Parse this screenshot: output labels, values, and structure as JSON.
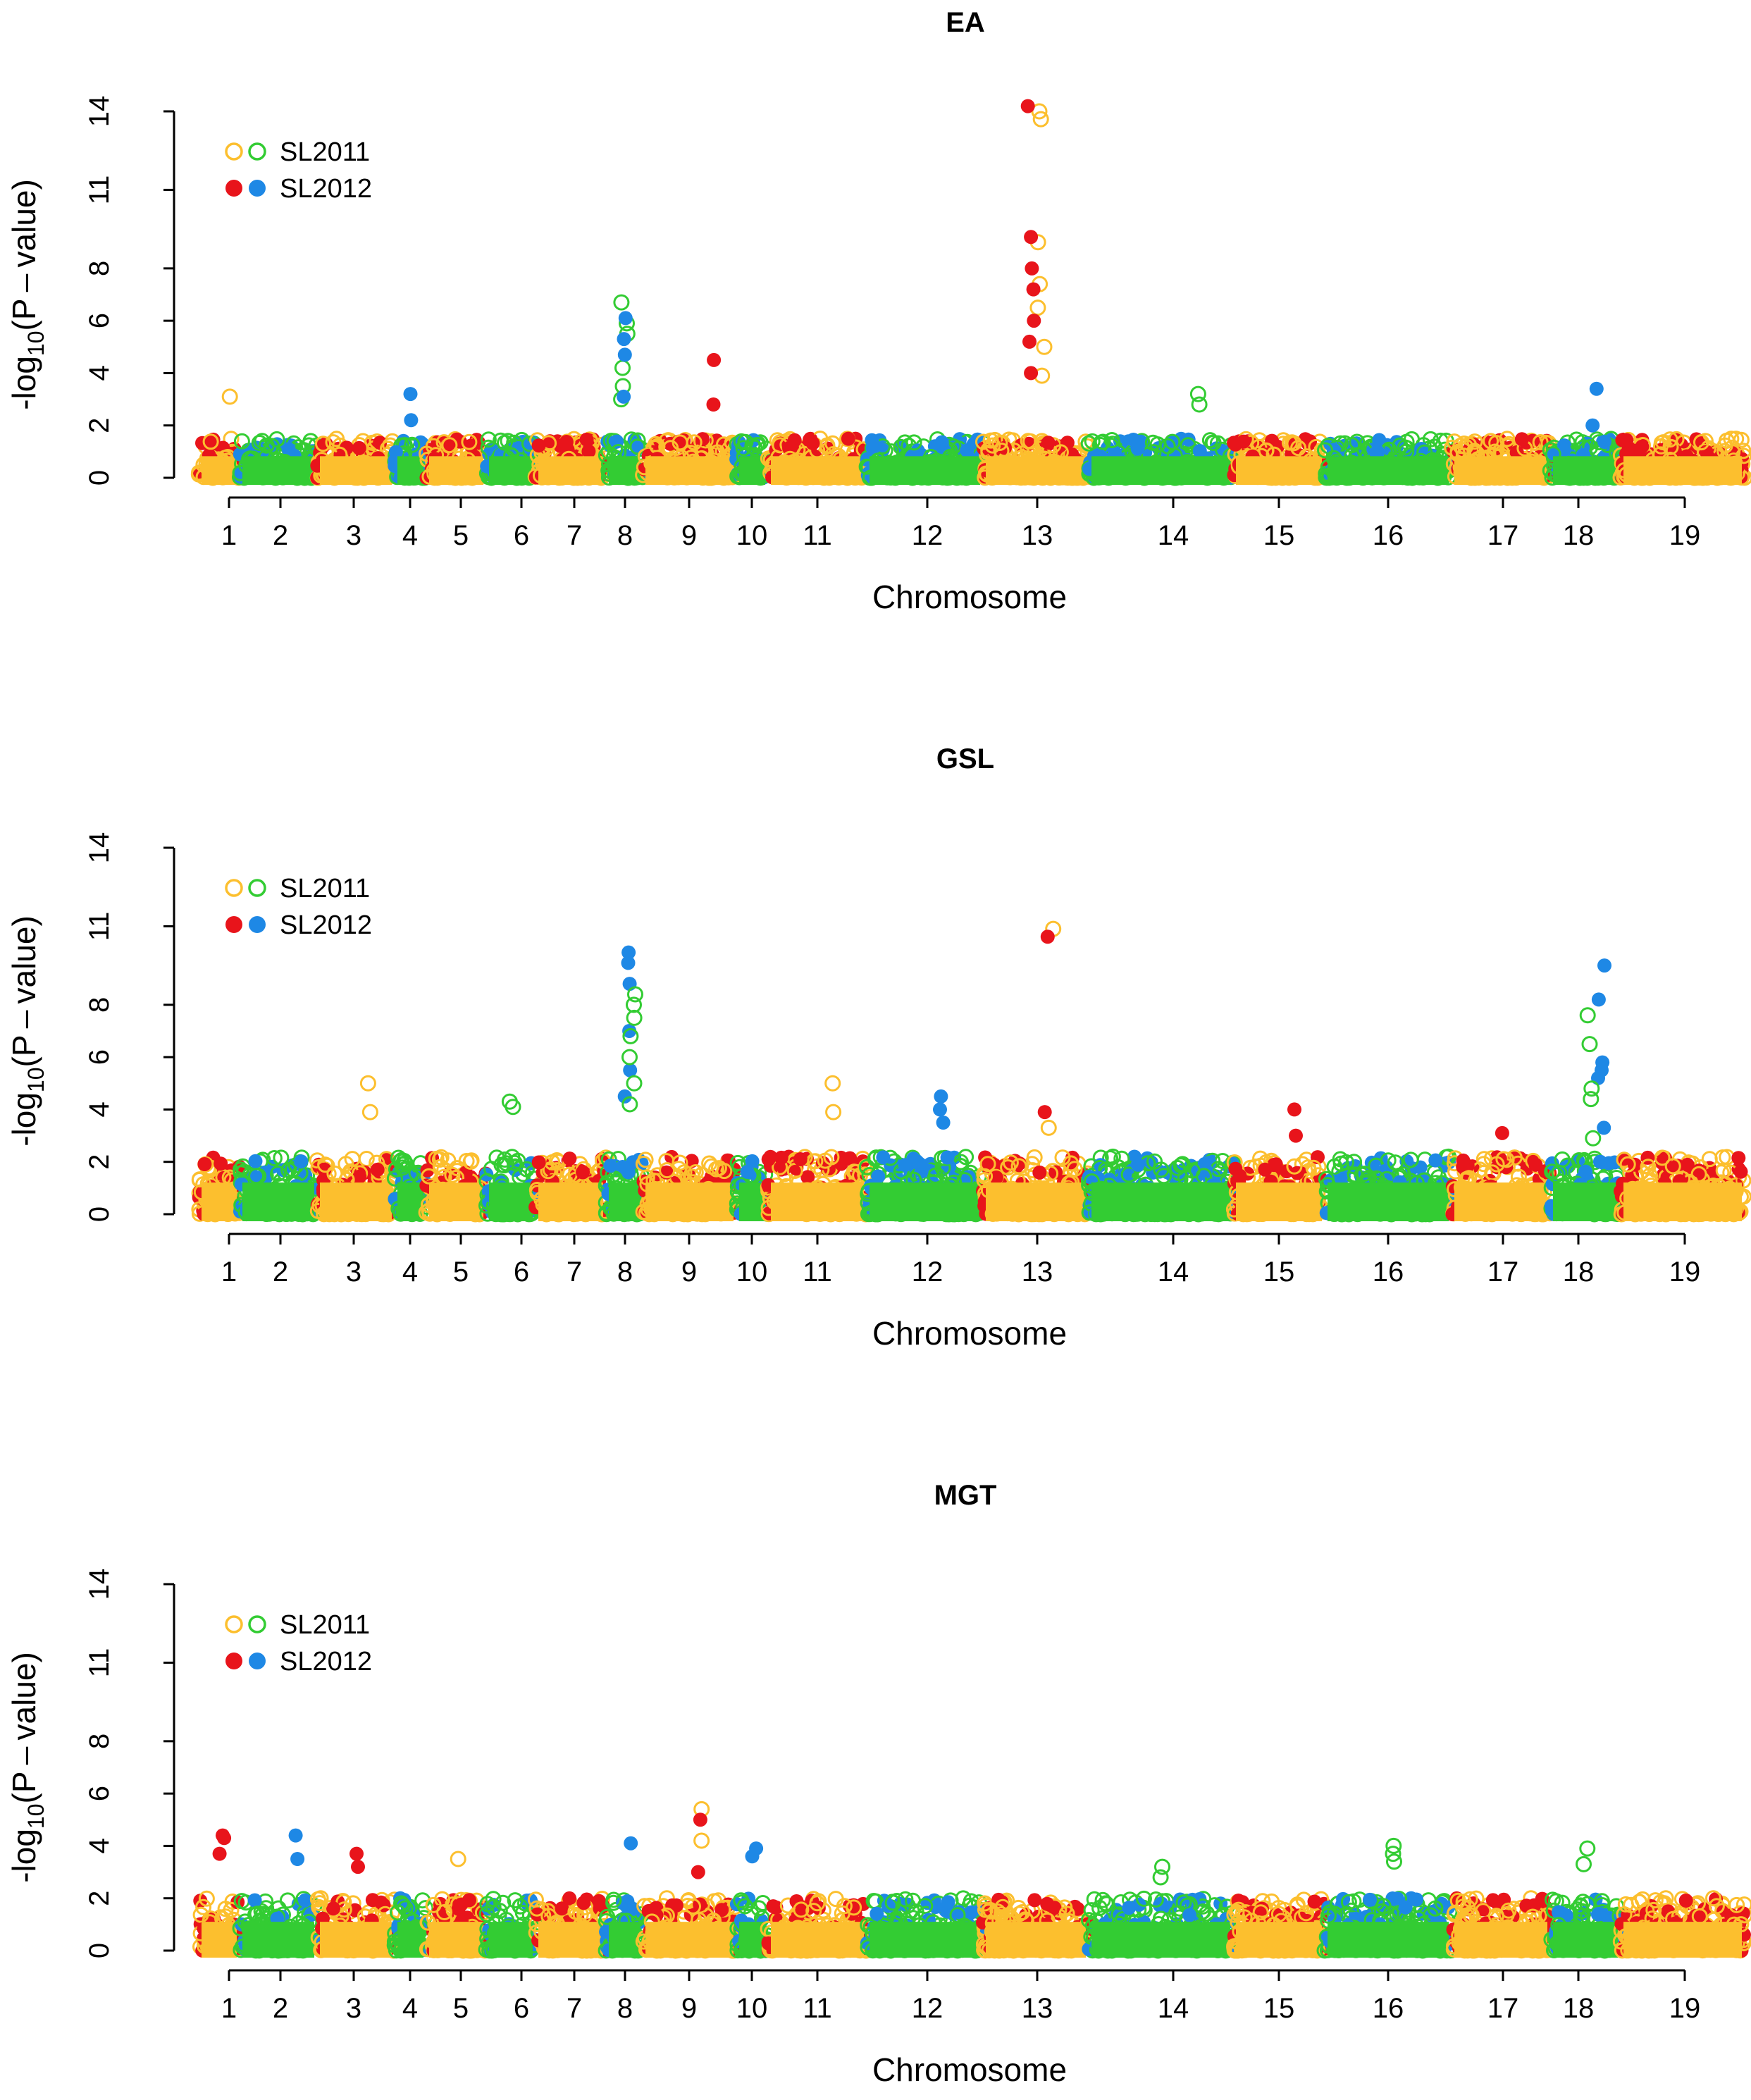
{
  "figure": {
    "panels_count": 3,
    "colors": {
      "sl2011_odd": "#FCBF2E",
      "sl2011_even": "#33CC33",
      "sl2012_odd": "#E8141B",
      "sl2012_even": "#1E88E5",
      "axis": "#000000"
    },
    "legend": {
      "sl2011": "SL2011",
      "sl2012": "SL2012"
    }
  },
  "chart_data": [
    {
      "type": "scatter",
      "title": "EA",
      "xlabel": "Chromosome",
      "ylabel": "-log10(P-value)",
      "ylabel_main": "-log",
      "ylabel_sub": "10",
      "ylabel_rest": "(P – value)",
      "yticks": [
        0,
        2,
        4,
        6,
        8,
        11,
        14
      ],
      "ylim": [
        0,
        14
      ],
      "xlim": [
        0,
        72
      ],
      "chromosomes": [
        "1",
        "2",
        "3",
        "4",
        "5",
        "6",
        "7",
        "8",
        "9",
        "10",
        "11",
        "12",
        "13",
        "14",
        "15",
        "16",
        "17",
        "18",
        "19"
      ],
      "chrom_ranges": [
        [
          0,
          3.5
        ],
        [
          3.5,
          7
        ],
        [
          7,
          13
        ],
        [
          13,
          15
        ],
        [
          15,
          19
        ],
        [
          19,
          22
        ],
        [
          22,
          26.5
        ],
        [
          26.5,
          29
        ],
        [
          29,
          34.5
        ],
        [
          34.5,
          37
        ],
        [
          37,
          42
        ],
        [
          42,
          48.5
        ],
        [
          48.5,
          54
        ],
        [
          54,
          60
        ],
        [
          60,
          63.5
        ],
        [
          63.5,
          69
        ],
        [
          69,
          75
        ],
        [
          75,
          80
        ],
        [
          80,
          84.5
        ]
      ],
      "baseline_max": 1.5,
      "peaks": [
        {
          "chrom": 8,
          "series": "SL2011",
          "values": [
            6.7,
            5.9,
            5.5,
            4.2,
            3.5,
            3.0
          ]
        },
        {
          "chrom": 8,
          "series": "SL2012",
          "values": [
            6.1,
            5.3,
            4.7,
            3.1
          ]
        },
        {
          "chrom": 9,
          "series": "SL2012",
          "values": [
            4.5,
            2.8
          ]
        },
        {
          "chrom": 13,
          "series": "SL2011",
          "values": [
            14.0,
            13.7,
            9.0,
            7.4,
            6.5,
            5.0,
            3.9
          ]
        },
        {
          "chrom": 13,
          "series": "SL2012",
          "values": [
            14.2,
            9.2,
            8.0,
            7.2,
            6.0,
            5.2,
            4.0
          ]
        },
        {
          "chrom": 18,
          "series": "SL2012",
          "values": [
            3.4,
            2.0
          ]
        },
        {
          "chrom": 4,
          "series": "SL2012",
          "values": [
            3.2,
            2.2
          ]
        },
        {
          "chrom": 1,
          "series": "SL2011",
          "values": [
            3.1
          ]
        },
        {
          "chrom": 14,
          "series": "SL2011",
          "values": [
            3.2,
            2.8
          ]
        }
      ]
    },
    {
      "type": "scatter",
      "title": "GSL",
      "xlabel": "Chromosome",
      "ylabel": "-log10(P-value)",
      "ylabel_main": "-log",
      "ylabel_sub": "10",
      "ylabel_rest": "(P – value)",
      "yticks": [
        0,
        2,
        4,
        6,
        8,
        11,
        14
      ],
      "ylim": [
        0,
        14
      ],
      "baseline_max": 2.2,
      "peaks": [
        {
          "chrom": 8,
          "series": "SL2012",
          "values": [
            10.0,
            9.6,
            8.8,
            7.0,
            5.5,
            4.5
          ]
        },
        {
          "chrom": 8,
          "series": "SL2011",
          "values": [
            8.4,
            8.0,
            7.5,
            6.8,
            6.0,
            5.0,
            4.2
          ]
        },
        {
          "chrom": 13,
          "series": "SL2011",
          "values": [
            10.9,
            3.3
          ]
        },
        {
          "chrom": 13,
          "series": "SL2012",
          "values": [
            10.6,
            3.9
          ]
        },
        {
          "chrom": 18,
          "series": "SL2012",
          "values": [
            9.5,
            8.2,
            5.8,
            5.5,
            5.2,
            3.3
          ]
        },
        {
          "chrom": 18,
          "series": "SL2011",
          "values": [
            7.6,
            6.5,
            4.8,
            4.4,
            2.9
          ]
        },
        {
          "chrom": 3,
          "series": "SL2011",
          "values": [
            5.0,
            3.9
          ]
        },
        {
          "chrom": 11,
          "series": "SL2011",
          "values": [
            5.0,
            3.9
          ]
        },
        {
          "chrom": 12,
          "series": "SL2012",
          "values": [
            4.5,
            4.0,
            3.5
          ]
        },
        {
          "chrom": 15,
          "series": "SL2012",
          "values": [
            4.0,
            3.0
          ]
        },
        {
          "chrom": 6,
          "series": "SL2011",
          "values": [
            4.3,
            4.1
          ]
        },
        {
          "chrom": 17,
          "series": "SL2012",
          "values": [
            3.1
          ]
        }
      ]
    },
    {
      "type": "scatter",
      "title": "MGT",
      "xlabel": "Chromosome",
      "ylabel": "-log10(P-value)",
      "ylabel_main": "-log",
      "ylabel_sub": "10",
      "ylabel_rest": "(P – value)",
      "yticks": [
        0,
        2,
        4,
        6,
        8,
        11,
        14
      ],
      "ylim": [
        0,
        14
      ],
      "baseline_max": 2.0,
      "peaks": [
        {
          "chrom": 9,
          "series": "SL2011",
          "values": [
            5.4,
            4.2
          ]
        },
        {
          "chrom": 9,
          "series": "SL2012",
          "values": [
            5.0,
            3.0
          ]
        },
        {
          "chrom": 10,
          "series": "SL2012",
          "values": [
            3.6
          ]
        },
        {
          "chrom": 10,
          "series": "SL2012",
          "values": [
            3.9
          ]
        },
        {
          "chrom": 1,
          "series": "SL2012",
          "values": [
            4.4,
            4.3,
            3.7
          ]
        },
        {
          "chrom": 2,
          "series": "SL2012",
          "values": [
            4.4,
            3.5
          ]
        },
        {
          "chrom": 8,
          "series": "SL2012",
          "values": [
            4.1
          ]
        },
        {
          "chrom": 16,
          "series": "SL2011",
          "values": [
            4.0,
            3.7,
            3.4
          ]
        },
        {
          "chrom": 18,
          "series": "SL2011",
          "values": [
            3.9,
            3.3
          ]
        },
        {
          "chrom": 3,
          "series": "SL2012",
          "values": [
            3.7,
            3.2
          ]
        },
        {
          "chrom": 5,
          "series": "SL2011",
          "values": [
            3.5
          ]
        },
        {
          "chrom": 14,
          "series": "SL2011",
          "values": [
            3.2,
            2.8
          ]
        }
      ]
    }
  ]
}
